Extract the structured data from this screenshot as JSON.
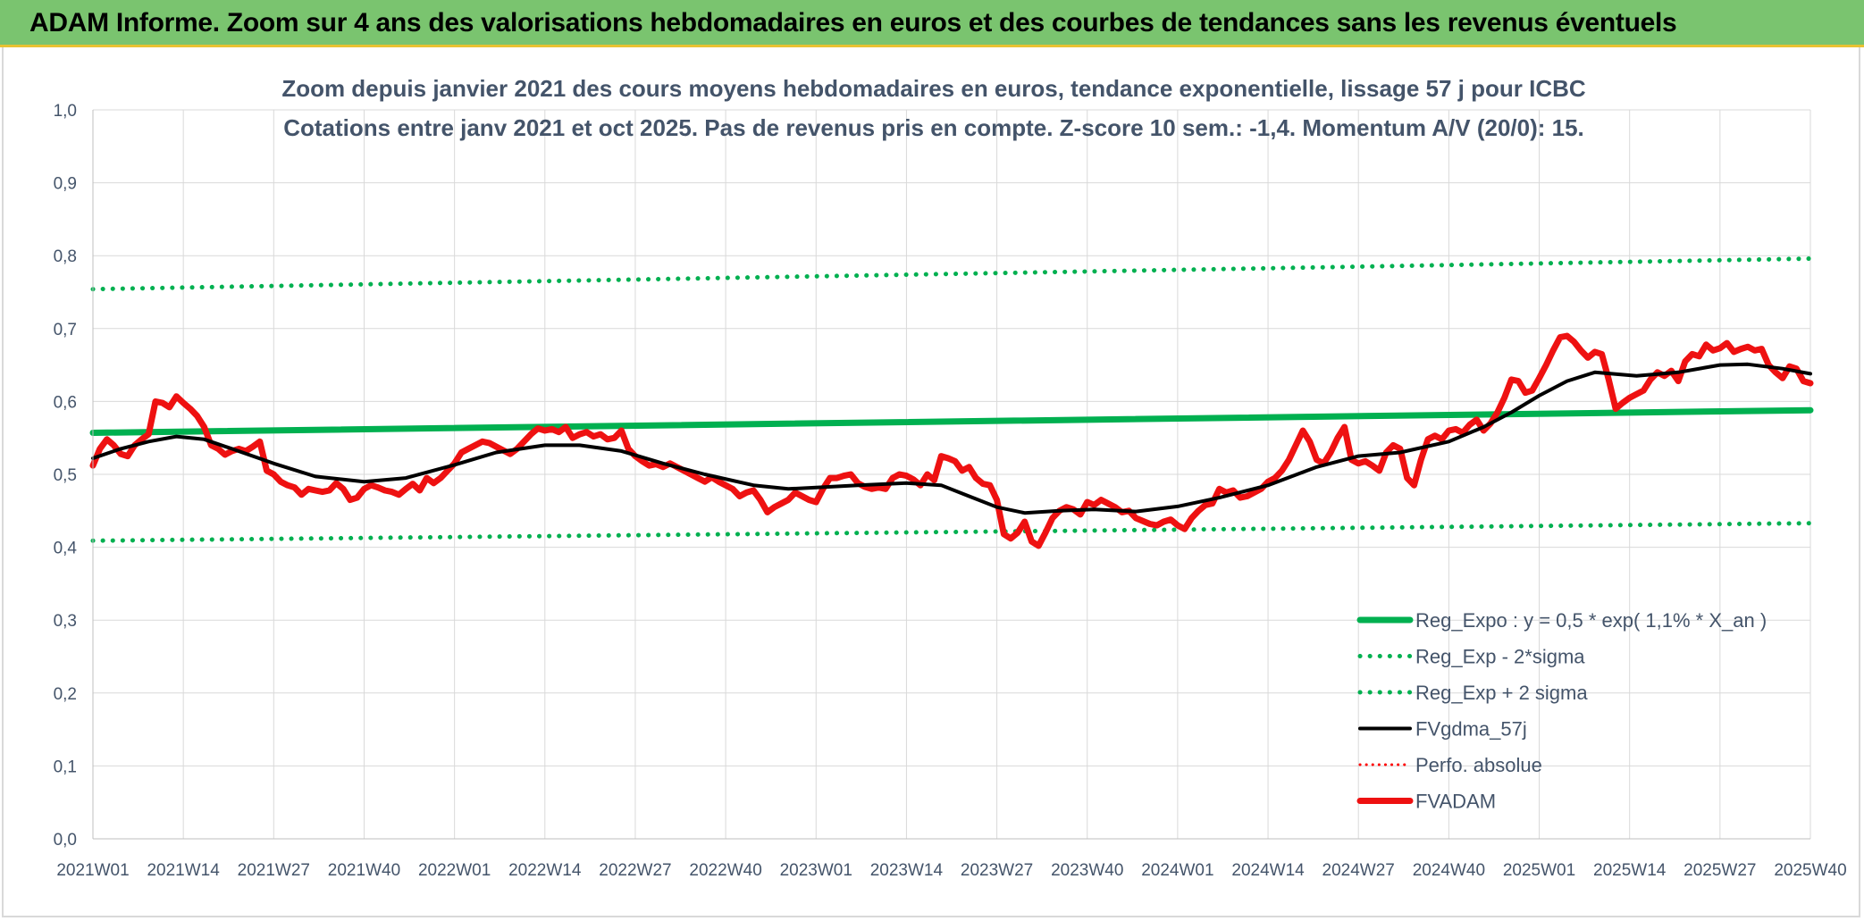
{
  "header": {
    "title": "ADAM Informe. Zoom sur 4 ans des valorisations hebdomadaires en euros et des courbes de tendances sans les revenus éventuels"
  },
  "chart_data": {
    "type": "line",
    "title": "Zoom depuis janvier 2021 des cours moyens hebdomadaires en euros, tendance exponentielle, lissage 57 j pour ICBC",
    "subtitle": "Cotations entre janv 2021 et oct 2025. Pas de revenus pris en compte. Z-score 10 sem.: -1,4. Momentum A/V (20/0): 15.",
    "xlabel": "",
    "ylabel": "",
    "ylim": [
      0,
      1
    ],
    "y_ticks": [
      "0,0",
      "0,1",
      "0,2",
      "0,3",
      "0,4",
      "0,5",
      "0,6",
      "0,7",
      "0,8",
      "0,9",
      "1,0"
    ],
    "x_ticks": [
      "2021W01",
      "2021W14",
      "2021W27",
      "2021W40",
      "2022W01",
      "2022W14",
      "2022W27",
      "2022W40",
      "2023W01",
      "2023W14",
      "2023W27",
      "2023W40",
      "2024W01",
      "2024W14",
      "2024W27",
      "2024W40",
      "2025W01",
      "2025W14",
      "2025W27",
      "2025W40"
    ],
    "x_tick_weeks": [
      0,
      13,
      26,
      39,
      52,
      65,
      78,
      91,
      104,
      117,
      130,
      143,
      156,
      169,
      182,
      195,
      208,
      221,
      234,
      247
    ],
    "grid": true,
    "legend_position": "bottom-right",
    "series": [
      {
        "name": "Reg_Expo : y = 0,5 * exp( 1,1% *  X_an )",
        "color": "#00b050",
        "style": "solid-thick",
        "x": [
          0,
          247
        ],
        "values": [
          0.557,
          0.588
        ]
      },
      {
        "name": "Reg_Exp - 2*sigma",
        "color": "#00b050",
        "style": "dotted",
        "x": [
          0,
          247
        ],
        "values": [
          0.409,
          0.433
        ]
      },
      {
        "name": "Reg_Exp + 2 sigma",
        "color": "#00b050",
        "style": "dotted",
        "x": [
          0,
          247
        ],
        "values": [
          0.754,
          0.796
        ]
      },
      {
        "name": "FVgdma_57j",
        "color": "#000000",
        "style": "solid",
        "x": [
          0,
          4,
          8,
          12,
          16,
          20,
          26,
          32,
          39,
          45,
          52,
          58,
          65,
          70,
          76,
          82,
          88,
          95,
          100,
          104,
          110,
          117,
          122,
          126,
          130,
          134,
          139,
          144,
          150,
          156,
          162,
          169,
          176,
          182,
          188,
          195,
          200,
          204,
          208,
          212,
          216,
          222,
          228,
          234,
          238,
          243,
          247
        ],
        "values": [
          0.522,
          0.535,
          0.545,
          0.552,
          0.548,
          0.535,
          0.515,
          0.497,
          0.49,
          0.495,
          0.513,
          0.53,
          0.54,
          0.54,
          0.532,
          0.515,
          0.5,
          0.485,
          0.48,
          0.482,
          0.485,
          0.488,
          0.485,
          0.47,
          0.455,
          0.447,
          0.45,
          0.452,
          0.449,
          0.456,
          0.468,
          0.485,
          0.51,
          0.525,
          0.53,
          0.545,
          0.565,
          0.585,
          0.608,
          0.628,
          0.64,
          0.635,
          0.64,
          0.65,
          0.651,
          0.645,
          0.638
        ]
      },
      {
        "name": "Perfo. absolue",
        "color": "#ff0000",
        "style": "dotted-thin",
        "x": [],
        "values": []
      },
      {
        "name": "FVADAM",
        "color": "#ee1111",
        "style": "solid-thick",
        "x": [
          0,
          1,
          2,
          3,
          4,
          5,
          6,
          7,
          8,
          9,
          10,
          11,
          12,
          13,
          14,
          15,
          16,
          17,
          18,
          19,
          20,
          21,
          22,
          23,
          24,
          25,
          26,
          27,
          28,
          29,
          30,
          31,
          32,
          33,
          34,
          35,
          36,
          37,
          38,
          39,
          40,
          41,
          42,
          43,
          44,
          45,
          46,
          47,
          48,
          49,
          50,
          51,
          52,
          53,
          54,
          55,
          56,
          57,
          58,
          59,
          60,
          61,
          62,
          63,
          64,
          65,
          66,
          67,
          68,
          69,
          70,
          71,
          72,
          73,
          74,
          75,
          76,
          77,
          78,
          79,
          80,
          81,
          82,
          83,
          84,
          85,
          86,
          87,
          88,
          89,
          90,
          91,
          92,
          93,
          94,
          95,
          96,
          97,
          98,
          99,
          100,
          101,
          102,
          103,
          104,
          105,
          106,
          107,
          108,
          109,
          110,
          111,
          112,
          113,
          114,
          115,
          116,
          117,
          118,
          119,
          120,
          121,
          122,
          123,
          124,
          125,
          126,
          127,
          128,
          129,
          130,
          131,
          132,
          133,
          134,
          135,
          136,
          137,
          138,
          139,
          140,
          141,
          142,
          143,
          144,
          145,
          146,
          147,
          148,
          149,
          150,
          151,
          152,
          153,
          154,
          155,
          156,
          157,
          158,
          159,
          160,
          161,
          162,
          163,
          164,
          165,
          166,
          167,
          168,
          169,
          170,
          171,
          172,
          173,
          174,
          175,
          176,
          177,
          178,
          179,
          180,
          181,
          182,
          183,
          184,
          185,
          186,
          187,
          188,
          189,
          190,
          191,
          192,
          193,
          194,
          195,
          196,
          197,
          198,
          199,
          200,
          201,
          202,
          203,
          204,
          205,
          206,
          207,
          208,
          209,
          210,
          211,
          212,
          213,
          214,
          215,
          216,
          217,
          218,
          219,
          220,
          221,
          222,
          223,
          224,
          225,
          226,
          227,
          228,
          229,
          230,
          231,
          232,
          233,
          234,
          235,
          236,
          237,
          238,
          239,
          240,
          241,
          242,
          243,
          244,
          245,
          246,
          247
        ],
        "values": [
          0.512,
          0.535,
          0.548,
          0.54,
          0.528,
          0.525,
          0.54,
          0.548,
          0.555,
          0.6,
          0.598,
          0.592,
          0.607,
          0.598,
          0.59,
          0.58,
          0.565,
          0.54,
          0.535,
          0.527,
          0.532,
          0.535,
          0.532,
          0.538,
          0.545,
          0.505,
          0.5,
          0.49,
          0.485,
          0.482,
          0.472,
          0.48,
          0.478,
          0.476,
          0.478,
          0.488,
          0.48,
          0.465,
          0.468,
          0.48,
          0.485,
          0.482,
          0.478,
          0.476,
          0.472,
          0.48,
          0.487,
          0.478,
          0.495,
          0.488,
          0.495,
          0.505,
          0.515,
          0.53,
          0.535,
          0.54,
          0.545,
          0.543,
          0.538,
          0.533,
          0.528,
          0.535,
          0.545,
          0.555,
          0.563,
          0.56,
          0.562,
          0.558,
          0.565,
          0.55,
          0.555,
          0.558,
          0.552,
          0.555,
          0.548,
          0.55,
          0.56,
          0.535,
          0.525,
          0.518,
          0.512,
          0.514,
          0.51,
          0.515,
          0.51,
          0.505,
          0.5,
          0.495,
          0.49,
          0.496,
          0.49,
          0.485,
          0.48,
          0.47,
          0.475,
          0.478,
          0.465,
          0.448,
          0.455,
          0.46,
          0.465,
          0.475,
          0.47,
          0.465,
          0.462,
          0.48,
          0.495,
          0.495,
          0.498,
          0.5,
          0.488,
          0.483,
          0.48,
          0.482,
          0.48,
          0.495,
          0.5,
          0.498,
          0.493,
          0.485,
          0.5,
          0.492,
          0.525,
          0.522,
          0.518,
          0.505,
          0.51,
          0.495,
          0.487,
          0.485,
          0.465,
          0.418,
          0.412,
          0.42,
          0.435,
          0.408,
          0.402,
          0.42,
          0.44,
          0.45,
          0.455,
          0.452,
          0.445,
          0.462,
          0.458,
          0.465,
          0.46,
          0.455,
          0.448,
          0.45,
          0.44,
          0.436,
          0.432,
          0.43,
          0.435,
          0.438,
          0.43,
          0.425,
          0.44,
          0.45,
          0.458,
          0.46,
          0.48,
          0.475,
          0.478,
          0.468,
          0.47,
          0.475,
          0.48,
          0.49,
          0.495,
          0.505,
          0.52,
          0.54,
          0.56,
          0.545,
          0.52,
          0.515,
          0.53,
          0.55,
          0.565,
          0.52,
          0.515,
          0.518,
          0.512,
          0.505,
          0.53,
          0.54,
          0.535,
          0.495,
          0.485,
          0.52,
          0.548,
          0.553,
          0.548,
          0.56,
          0.562,
          0.557,
          0.568,
          0.575,
          0.56,
          0.57,
          0.585,
          0.605,
          0.63,
          0.628,
          0.612,
          0.615,
          0.632,
          0.65,
          0.67,
          0.688,
          0.69,
          0.682,
          0.67,
          0.66,
          0.668,
          0.665,
          0.63,
          0.59,
          0.598,
          0.605,
          0.61,
          0.615,
          0.63,
          0.64,
          0.635,
          0.642,
          0.628,
          0.655,
          0.665,
          0.662,
          0.678,
          0.67,
          0.673,
          0.68,
          0.668,
          0.672,
          0.675,
          0.67,
          0.672,
          0.65,
          0.64,
          0.632,
          0.648,
          0.645,
          0.628,
          0.625
        ]
      }
    ]
  }
}
